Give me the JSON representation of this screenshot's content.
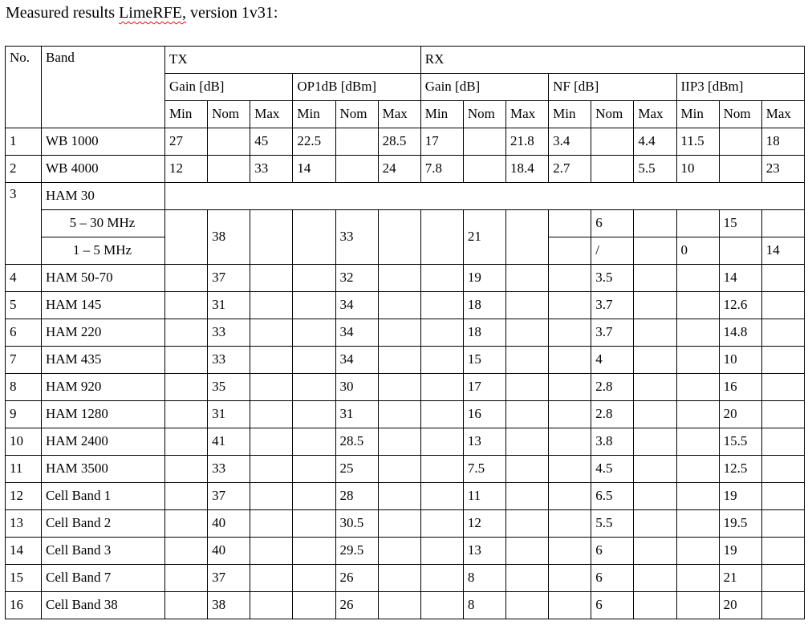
{
  "title": {
    "prefix": "Measured results ",
    "spellcheck_word": "LimeRFE,",
    "suffix": " version 1v31:"
  },
  "table": {
    "header": {
      "no": "No.",
      "band": "Band",
      "tx": "TX",
      "rx": "RX",
      "groups": [
        "Gain [dB]",
        "OP1dB [dBm]",
        "Gain [dB]",
        "NF [dB]",
        "IIP3 [dBm]"
      ],
      "minmax": [
        "Min",
        "Nom",
        "Max"
      ]
    },
    "rows": [
      {
        "type": "simple",
        "no": "1",
        "band": "WB 1000",
        "cells": [
          "27",
          "",
          "45",
          "22.5",
          "",
          "28.5",
          "17",
          "",
          "21.8",
          "3.4",
          "",
          "4.4",
          "11.5",
          "",
          "18"
        ]
      },
      {
        "type": "simple",
        "no": "2",
        "band": "WB 4000",
        "cells": [
          "12",
          "",
          "33",
          "14",
          "",
          "24",
          "7.8",
          "",
          "18.4",
          "2.7",
          "",
          "5.5",
          "10",
          "",
          "23"
        ]
      },
      {
        "type": "group-header",
        "no": "3",
        "band": "HAM 30"
      },
      {
        "type": "sub-first",
        "band": "5 – 30 MHz",
        "spanned": [
          "",
          "38",
          "",
          "",
          "33",
          "",
          "",
          "21",
          ""
        ],
        "cells": [
          "",
          "6",
          "",
          "",
          "15",
          ""
        ]
      },
      {
        "type": "sub-next",
        "band": "1 – 5 MHz",
        "cells": [
          "",
          "/",
          "",
          "0",
          "",
          "14"
        ]
      },
      {
        "type": "simple",
        "no": "4",
        "band": "HAM 50-70",
        "cells": [
          "",
          "37",
          "",
          "",
          "32",
          "",
          "",
          "19",
          "",
          "",
          "3.5",
          "",
          "",
          "14",
          ""
        ]
      },
      {
        "type": "simple",
        "no": "5",
        "band": "HAM 145",
        "cells": [
          "",
          "31",
          "",
          "",
          "34",
          "",
          "",
          "18",
          "",
          "",
          "3.7",
          "",
          "",
          "12.6",
          ""
        ]
      },
      {
        "type": "simple",
        "no": "6",
        "band": "HAM 220",
        "cells": [
          "",
          "33",
          "",
          "",
          "34",
          "",
          "",
          "18",
          "",
          "",
          "3.7",
          "",
          "",
          "14.8",
          ""
        ]
      },
      {
        "type": "simple",
        "no": "7",
        "band": "HAM 435",
        "cells": [
          "",
          "33",
          "",
          "",
          "34",
          "",
          "",
          "15",
          "",
          "",
          "4",
          "",
          "",
          "10",
          ""
        ]
      },
      {
        "type": "simple",
        "no": "8",
        "band": "HAM 920",
        "cells": [
          "",
          "35",
          "",
          "",
          "30",
          "",
          "",
          "17",
          "",
          "",
          "2.8",
          "",
          "",
          "16",
          ""
        ]
      },
      {
        "type": "simple",
        "no": "9",
        "band": "HAM 1280",
        "cells": [
          "",
          "31",
          "",
          "",
          "31",
          "",
          "",
          "16",
          "",
          "",
          "2.8",
          "",
          "",
          "20",
          ""
        ]
      },
      {
        "type": "simple",
        "no": "10",
        "band": "HAM 2400",
        "cells": [
          "",
          "41",
          "",
          "",
          "28.5",
          "",
          "",
          "13",
          "",
          "",
          "3.8",
          "",
          "",
          "15.5",
          ""
        ]
      },
      {
        "type": "simple",
        "no": "11",
        "band": "HAM 3500",
        "cells": [
          "",
          "33",
          "",
          "",
          "25",
          "",
          "",
          "7.5",
          "",
          "",
          "4.5",
          "",
          "",
          "12.5",
          ""
        ]
      },
      {
        "type": "simple",
        "no": "12",
        "band": "Cell Band 1",
        "cells": [
          "",
          "37",
          "",
          "",
          "28",
          "",
          "",
          "11",
          "",
          "",
          "6.5",
          "",
          "",
          "19",
          ""
        ]
      },
      {
        "type": "simple",
        "no": "13",
        "band": "Cell Band 2",
        "cells": [
          "",
          "40",
          "",
          "",
          "30.5",
          "",
          "",
          "12",
          "",
          "",
          "5.5",
          "",
          "",
          "19.5",
          ""
        ]
      },
      {
        "type": "simple",
        "no": "14",
        "band": "Cell Band 3",
        "cells": [
          "",
          "40",
          "",
          "",
          "29.5",
          "",
          "",
          "13",
          "",
          "",
          "6",
          "",
          "",
          "19",
          ""
        ]
      },
      {
        "type": "simple",
        "no": "15",
        "band": "Cell Band 7",
        "cells": [
          "",
          "37",
          "",
          "",
          "26",
          "",
          "",
          "8",
          "",
          "",
          "6",
          "",
          "",
          "21",
          ""
        ]
      },
      {
        "type": "simple",
        "no": "16",
        "band": "Cell Band 38",
        "cells": [
          "",
          "38",
          "",
          "",
          "26",
          "",
          "",
          "8",
          "",
          "",
          "6",
          "",
          "",
          "20",
          ""
        ]
      }
    ]
  }
}
